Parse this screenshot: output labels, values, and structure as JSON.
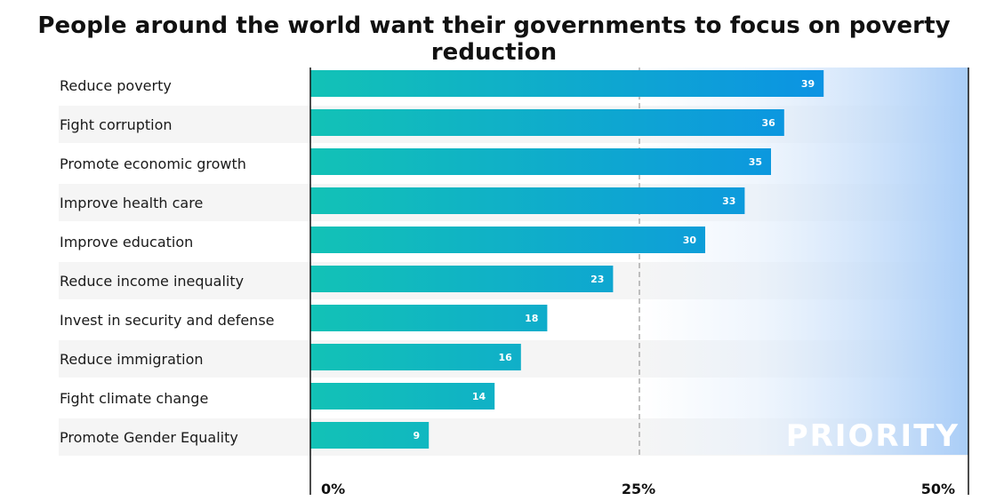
{
  "title": "People around the world want their governments to focus on poverty reduction",
  "chart_data": {
    "type": "bar",
    "orientation": "horizontal",
    "categories": [
      "Reduce poverty",
      "Fight corruption",
      "Promote economic growth",
      "Improve health care",
      "Improve education",
      "Reduce income inequality",
      "Invest in security and defense",
      "Reduce immigration",
      "Fight climate change",
      "Promote Gender Equality"
    ],
    "values": [
      39,
      36,
      35,
      33,
      30,
      23,
      18,
      16,
      14,
      9
    ],
    "value_labels": [
      "39",
      "36",
      "35",
      "33",
      "30",
      "23",
      "18",
      "16",
      "14",
      "9"
    ],
    "xlim": [
      0,
      50
    ],
    "ticks": [
      0,
      25,
      50
    ],
    "tick_labels": [
      "0%",
      "25%",
      "50%"
    ],
    "reference_line": 25,
    "annotation": "PRIORITY",
    "colors": {
      "bar_start": "#12c2b6",
      "bar_end": "#0a86f0",
      "band_light": "#e6f0fc",
      "band_dark": "#a9cdf7",
      "stripe": "#f5f5f5"
    }
  }
}
